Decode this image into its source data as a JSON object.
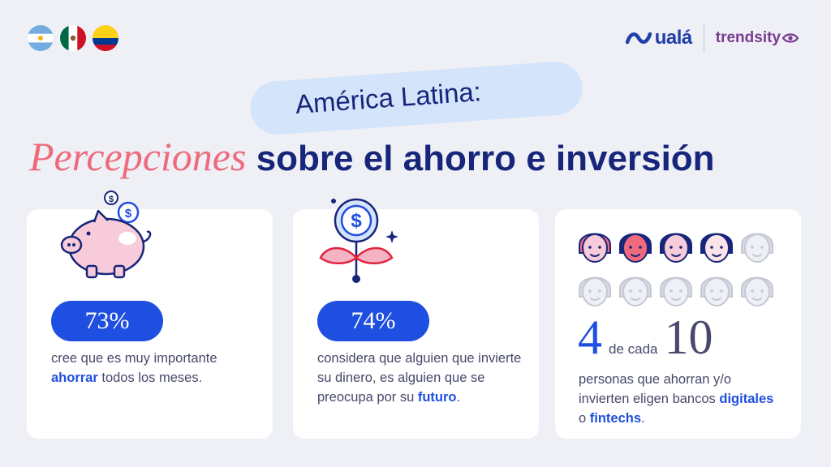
{
  "flags": [
    {
      "name": "argentina-flag"
    },
    {
      "name": "mexico-flag"
    },
    {
      "name": "colombia-flag"
    }
  ],
  "logos": {
    "uala": "ualá",
    "trendsity": "trendsity"
  },
  "header": {
    "subtitle": "América Latina:",
    "title_accent": "Percepciones",
    "title_rest": "sobre el ahorro e inversión"
  },
  "cards": [
    {
      "percent": "73%",
      "desc_pre": "cree que es muy importante ",
      "desc_bold": "ahorrar",
      "desc_post": " todos los meses.",
      "icon": "piggy-bank-icon"
    },
    {
      "percent": "74%",
      "desc_pre": "considera que alguien que invierte su dinero, es alguien que se preocupa por su ",
      "desc_bold": "futuro",
      "desc_post": ".",
      "icon": "coin-plant-icon"
    },
    {
      "stat_num": "4",
      "stat_mid": "de cada",
      "stat_den": "10",
      "desc_pre": "personas que ahorran y/o invierten eligen bancos ",
      "desc_bold1": "digitales",
      "desc_mid": " o ",
      "desc_bold2": "fintechs",
      "desc_post": ".",
      "icon": "people-faces-icon",
      "highlighted_faces": 4,
      "total_faces": 10
    }
  ],
  "colors": {
    "primary": "#1f4fe0",
    "navy": "#17257a",
    "pink": "#ee6a7c",
    "bg": "#eef0f6"
  }
}
